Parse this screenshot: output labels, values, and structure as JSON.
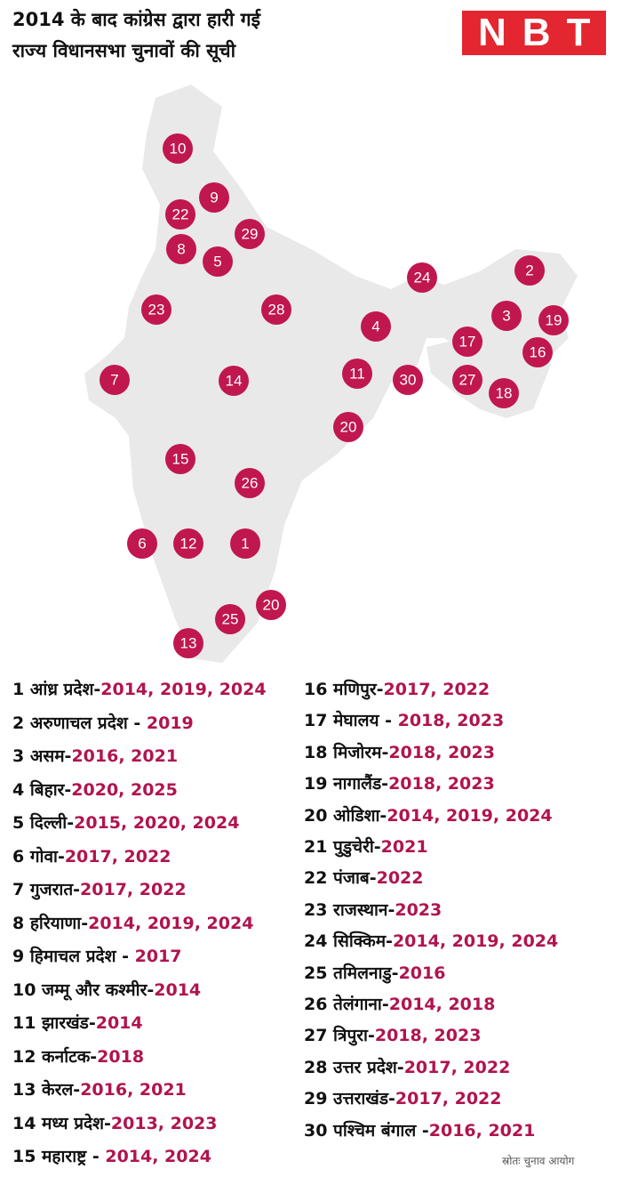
{
  "header": {
    "title_lines": [
      "2014 के बाद कांग्रेस द्वारा हारी गई",
      "राज्य विधानसभा चुनावों की सूची"
    ],
    "logo": "NBT"
  },
  "map": {
    "markers": [
      "10",
      "9",
      "22",
      "29",
      "8",
      "5",
      "24",
      "2",
      "23",
      "28",
      "4",
      "3",
      "19",
      "17",
      "16",
      "7",
      "14",
      "11",
      "30",
      "27",
      "18",
      "20",
      "15",
      "26",
      "6",
      "12",
      "1",
      "20",
      "25",
      "13"
    ]
  },
  "list": [
    {
      "name": "1 आंध्र प्रदेश-",
      "years": "2014, 2019, 2024"
    },
    {
      "name": "2 अरुणाचल प्रदेश - ",
      "years": "2019"
    },
    {
      "name": "3 असम-",
      "years": "2016, 2021"
    },
    {
      "name": "4 बिहार-",
      "years": "2020, 2025"
    },
    {
      "name": "5 दिल्ली-",
      "years": "2015, 2020, 2024"
    },
    {
      "name": "6 गोवा-",
      "years": "2017, 2022"
    },
    {
      "name": "7 गुजरात-",
      "years": "2017, 2022"
    },
    {
      "name": "8 हरियाणा-",
      "years": "2014, 2019, 2024"
    },
    {
      "name": "9 हिमाचल प्रदेश - ",
      "years": "2017"
    },
    {
      "name": "10 जम्मू और कश्मीर-",
      "years": "2014"
    },
    {
      "name": "11 झारखंड-",
      "years": "2014"
    },
    {
      "name": "12 कर्नाटक-",
      "years": "2018"
    },
    {
      "name": "13 केरल-",
      "years": "2016, 2021"
    },
    {
      "name": "14 मध्य प्रदेश-",
      "years": "2013, 2023"
    },
    {
      "name": "15 महाराष्ट्र - ",
      "years": "2014, 2024"
    },
    {
      "name": "16 मणिपुर-",
      "years": "2017, 2022"
    },
    {
      "name": "17 मेघालय - ",
      "years": "2018, 2023"
    },
    {
      "name": "18 मिजोरम-",
      "years": "2018, 2023"
    },
    {
      "name": "19 नागालैंड-",
      "years": "2018, 2023"
    },
    {
      "name": "20 ओडिशा-",
      "years": "2014, 2019, 2024"
    },
    {
      "name": "21 पुडुचेरी-",
      "years": "2021"
    },
    {
      "name": "22 पंजाब-",
      "years": "2022"
    },
    {
      "name": "23 राजस्थान-",
      "years": "2023"
    },
    {
      "name": "24 सिक्किम-",
      "years": "2014, 2019, 2024"
    },
    {
      "name": "25 तमिलनाडु-",
      "years": "2016"
    },
    {
      "name": "26 तेलंगाना-",
      "years": "2014, 2018"
    },
    {
      "name": "27 त्रिपुरा-",
      "years": "2018, 2023"
    },
    {
      "name": "28 उत्तर प्रदेश-",
      "years": "2017, 2022"
    },
    {
      "name": "29 उत्तराखंड-",
      "years": "2017, 2022"
    },
    {
      "name": "30 पश्चिम बंगाल -",
      "years": "2016, 2021"
    }
  ],
  "source": "स्रोतः चुनाव आयोग"
}
